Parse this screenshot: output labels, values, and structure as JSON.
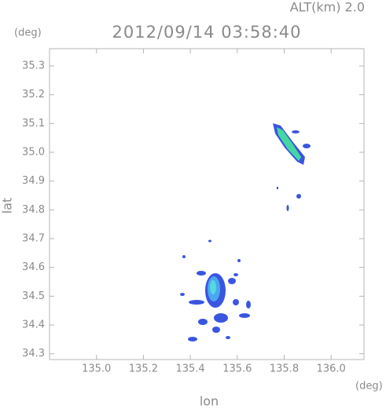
{
  "chart_data": {
    "type": "map",
    "title": "2012/09/14 03:58:40",
    "subtitle": "ALT(km) 2.0",
    "x_label": "lon",
    "x_unit": "(deg)",
    "y_label": "lat",
    "y_unit": "(deg)",
    "xlim": [
      134.8,
      136.14
    ],
    "ylim": [
      34.28,
      35.36
    ],
    "xticks": [
      {
        "value": 135,
        "label": "135.0"
      },
      {
        "value": 135.2,
        "label": "135.2"
      },
      {
        "value": 135.4,
        "label": "135.4"
      },
      {
        "value": 135.6,
        "label": "135.6"
      },
      {
        "value": 135.8,
        "label": "135.8"
      },
      {
        "value": 136,
        "label": "136.0"
      }
    ],
    "yticks": [
      34.3,
      34.4,
      34.5,
      34.6,
      34.7,
      34.8,
      34.9,
      {
        "value": 35,
        "label": "35.0"
      },
      35.1,
      35.2,
      35.3
    ]
  }
}
